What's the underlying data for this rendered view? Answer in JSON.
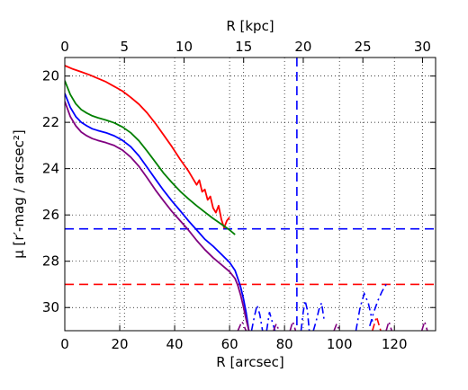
{
  "chart_data": {
    "type": "line",
    "title": "",
    "xlabel": "R [arcsec]",
    "x2label": "R [kpc]",
    "ylabel": "μ [r′-mag / arcsec²]",
    "xlim": [
      0,
      135
    ],
    "x2lim": [
      0,
      31.1
    ],
    "ylim": [
      31,
      19.2
    ],
    "y_inverted": true,
    "grid": true,
    "xticks": [
      0,
      20,
      40,
      60,
      80,
      100,
      120
    ],
    "x2ticks": [
      0,
      5,
      10,
      15,
      20,
      25,
      30
    ],
    "yticks": [
      20,
      22,
      24,
      26,
      28,
      30
    ],
    "series": [
      {
        "color": "#ff0000",
        "style": "solid",
        "x": [
          0,
          3,
          6,
          9,
          12,
          15,
          18,
          21,
          24,
          27,
          30,
          33,
          36,
          39,
          42,
          45,
          48,
          49,
          50,
          51,
          52,
          53,
          54,
          55,
          56,
          57,
          58,
          59,
          60
        ],
        "y": [
          19.55,
          19.7,
          19.82,
          19.95,
          20.1,
          20.25,
          20.45,
          20.65,
          20.92,
          21.22,
          21.6,
          22.05,
          22.55,
          23.05,
          23.6,
          24.1,
          24.7,
          24.5,
          25.0,
          24.9,
          25.35,
          25.2,
          25.7,
          25.9,
          25.6,
          26.2,
          26.55,
          26.25,
          26.1
        ]
      },
      {
        "color": "#008000",
        "style": "solid",
        "x": [
          0,
          2,
          4,
          6,
          8,
          10,
          12,
          15,
          18,
          21,
          24,
          27,
          30,
          33,
          36,
          39,
          42,
          45,
          48,
          51,
          54,
          57,
          60,
          62
        ],
        "y": [
          20.2,
          20.8,
          21.2,
          21.45,
          21.6,
          21.72,
          21.8,
          21.9,
          22.02,
          22.2,
          22.45,
          22.8,
          23.25,
          23.72,
          24.2,
          24.6,
          24.98,
          25.3,
          25.6,
          25.88,
          26.15,
          26.4,
          26.65,
          26.85
        ]
      },
      {
        "color": "#0000ff",
        "style": "solid",
        "x": [
          0,
          2,
          4,
          6,
          8,
          10,
          12,
          15,
          18,
          21,
          24,
          27,
          30,
          33,
          36,
          39,
          42,
          45,
          48,
          51,
          54,
          57,
          60,
          62,
          63,
          64,
          65,
          66,
          67
        ],
        "y": [
          20.75,
          21.35,
          21.75,
          22.0,
          22.15,
          22.28,
          22.35,
          22.45,
          22.58,
          22.78,
          23.05,
          23.45,
          23.95,
          24.45,
          24.95,
          25.4,
          25.82,
          26.25,
          26.65,
          27.05,
          27.35,
          27.7,
          28.05,
          28.4,
          28.75,
          29.1,
          29.6,
          30.2,
          31.0
        ]
      },
      {
        "color": "#800080",
        "style": "solid",
        "x": [
          0,
          2,
          4,
          6,
          8,
          10,
          12,
          15,
          18,
          21,
          24,
          27,
          30,
          33,
          36,
          39,
          42,
          45,
          48,
          51,
          54,
          57,
          60,
          62,
          63,
          64,
          65,
          66,
          67
        ],
        "y": [
          21.1,
          21.75,
          22.15,
          22.42,
          22.58,
          22.7,
          22.78,
          22.88,
          23.0,
          23.2,
          23.5,
          23.9,
          24.4,
          24.92,
          25.4,
          25.85,
          26.25,
          26.65,
          27.1,
          27.5,
          27.85,
          28.15,
          28.45,
          28.75,
          29.05,
          29.45,
          29.95,
          30.5,
          31.0
        ]
      }
    ],
    "reference_lines": [
      {
        "orientation": "horizontal",
        "value": 26.6,
        "color": "#0000ff",
        "style": "dashed"
      },
      {
        "orientation": "horizontal",
        "value": 29.0,
        "color": "#ff0000",
        "style": "dashed"
      },
      {
        "orientation": "vertical",
        "value": 84.5,
        "color": "#0000ff",
        "style": "dashed"
      }
    ],
    "noise_segments": [
      {
        "color": "#0000ff",
        "style": "dashdot",
        "x": [
          68,
          69,
          70,
          71,
          72
        ],
        "y": [
          31.0,
          30.4,
          29.9,
          30.3,
          31.0
        ]
      },
      {
        "color": "#0000ff",
        "style": "dashdot",
        "x": [
          73.5,
          74.5,
          75.5,
          76.5
        ],
        "y": [
          31.0,
          30.2,
          30.6,
          31.0
        ]
      },
      {
        "color": "#0000ff",
        "style": "dashdot",
        "x": [
          86,
          86.8,
          87.5,
          88.3,
          89
        ],
        "y": [
          31.0,
          30.2,
          29.7,
          30.1,
          31.0
        ]
      },
      {
        "color": "#0000ff",
        "style": "dashdot",
        "x": [
          90.5,
          91.5,
          92.5,
          93.5,
          94.5
        ],
        "y": [
          31.0,
          30.6,
          30.1,
          29.8,
          30.6
        ]
      },
      {
        "color": "#0000ff",
        "style": "dashdot",
        "x": [
          106,
          107.5,
          109,
          110.5,
          112
        ],
        "y": [
          31.0,
          30.0,
          29.4,
          29.8,
          30.6
        ]
      },
      {
        "color": "#0000ff",
        "style": "dashdot",
        "x": [
          111,
          112.5,
          114,
          115.5,
          117
        ],
        "y": [
          30.8,
          30.2,
          29.7,
          29.3,
          29.0
        ]
      },
      {
        "color": "#ff0000",
        "style": "dashdot",
        "x": [
          112,
          113.5,
          115
        ],
        "y": [
          31.0,
          30.4,
          31.0
        ]
      },
      {
        "color": "#800080",
        "style": "dashdot",
        "x": [
          63,
          64.5,
          66
        ],
        "y": [
          31.0,
          30.6,
          31.0
        ]
      },
      {
        "color": "#800080",
        "style": "dashdot",
        "x": [
          76,
          77,
          78
        ],
        "y": [
          31.0,
          30.7,
          31.0
        ]
      },
      {
        "color": "#800080",
        "style": "dashdot",
        "x": [
          82,
          83,
          84
        ],
        "y": [
          31.0,
          30.6,
          31.0
        ]
      },
      {
        "color": "#800080",
        "style": "dashdot",
        "x": [
          98,
          99,
          100
        ],
        "y": [
          31.0,
          30.7,
          31.0
        ]
      },
      {
        "color": "#800080",
        "style": "dashdot",
        "x": [
          117,
          118,
          119
        ],
        "y": [
          31.0,
          30.6,
          31.0
        ]
      },
      {
        "color": "#800080",
        "style": "dashdot",
        "x": [
          130,
          131,
          132
        ],
        "y": [
          31.0,
          30.6,
          31.0
        ]
      }
    ]
  }
}
